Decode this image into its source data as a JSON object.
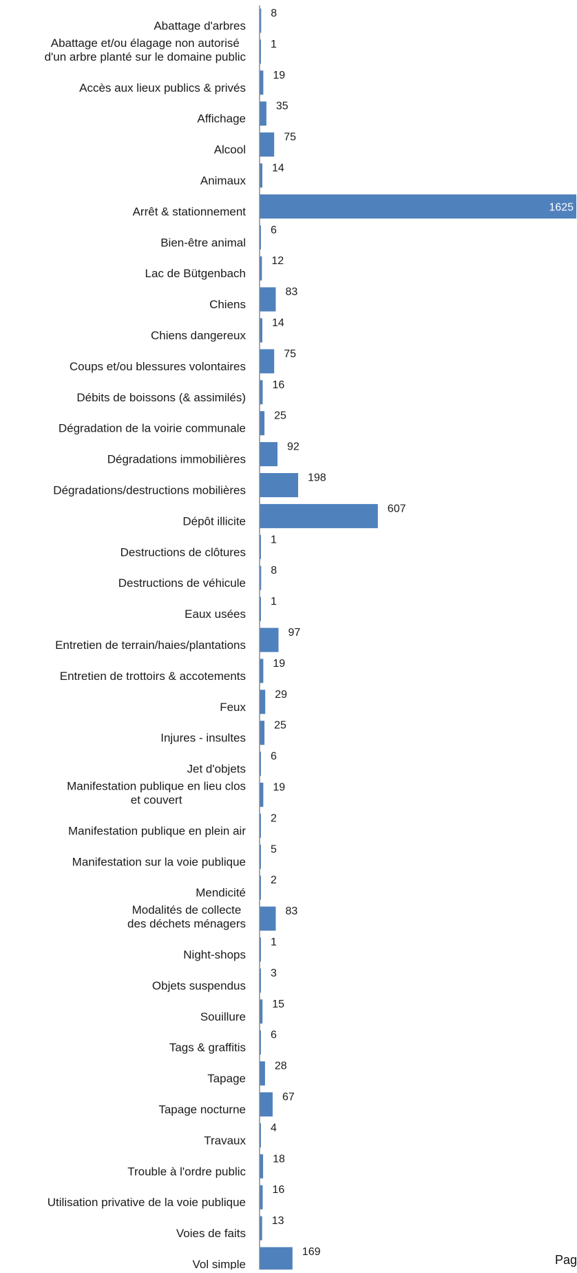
{
  "chart_data": {
    "type": "bar",
    "orientation": "horizontal",
    "title": "",
    "xlabel": "",
    "ylabel": "",
    "categories": [
      "Abattage d'arbres",
      "Abattage et/ou élagage non autorisé d'un arbre planté sur le domaine public",
      "Accès aux lieux publics & privés",
      "Affichage",
      "Alcool",
      "Animaux",
      "Arrêt & stationnement",
      "Bien-être animal",
      "Lac de Bütgenbach",
      "Chiens",
      "Chiens dangereux",
      "Coups et/ou blessures volontaires",
      "Débits de boissons (& assimilés)",
      "Dégradation de la voirie communale",
      "Dégradations immobilières",
      "Dégradations/destructions mobilières",
      "Dépôt illicite",
      "Destructions de clôtures",
      "Destructions de véhicule",
      "Eaux usées",
      "Entretien de terrain/haies/plantations",
      "Entretien de trottoirs & accotements",
      "Feux",
      "Injures - insultes",
      "Jet d'objets",
      "Manifestation publique en lieu clos et couvert",
      "Manifestation publique en plein air",
      "Manifestation sur la voie publique",
      "Mendicité",
      "Modalités de collecte des déchets ménagers",
      "Night-shops",
      "Objets suspendus",
      "Souillure",
      "Tags & graffitis",
      "Tapage",
      "Tapage nocturne",
      "Travaux",
      "Trouble à l'ordre public",
      "Utilisation privative de la voie publique",
      "Voies de faits",
      "Vol simple"
    ],
    "label_lines": [
      [
        "Abattage d'arbres"
      ],
      [
        "Abattage et/ou élagage non autorisé",
        "d'un arbre planté sur le domaine public"
      ],
      [
        "Accès aux lieux publics & privés"
      ],
      [
        "Affichage"
      ],
      [
        "Alcool"
      ],
      [
        "Animaux"
      ],
      [
        "Arrêt & stationnement"
      ],
      [
        "Bien-être animal"
      ],
      [
        "Lac de Bütgenbach"
      ],
      [
        "Chiens"
      ],
      [
        "Chiens dangereux"
      ],
      [
        "Coups et/ou blessures volontaires"
      ],
      [
        "Débits de boissons (& assimilés)"
      ],
      [
        "Dégradation de la voirie communale"
      ],
      [
        "Dégradations immobilières"
      ],
      [
        "Dégradations/destructions mobilières"
      ],
      [
        "Dépôt illicite"
      ],
      [
        "Destructions de clôtures"
      ],
      [
        "Destructions de véhicule"
      ],
      [
        "Eaux usées"
      ],
      [
        "Entretien de terrain/haies/plantations"
      ],
      [
        "Entretien de trottoirs & accotements"
      ],
      [
        "Feux"
      ],
      [
        "Injures - insultes"
      ],
      [
        "Jet d'objets"
      ],
      [
        "Manifestation publique en lieu clos",
        "et couvert"
      ],
      [
        "Manifestation publique en plein air"
      ],
      [
        "Manifestation sur la voie publique"
      ],
      [
        "Mendicité"
      ],
      [
        "Modalités de collecte",
        "des déchets ménagers"
      ],
      [
        "Night-shops"
      ],
      [
        "Objets suspendus"
      ],
      [
        "Souillure"
      ],
      [
        "Tags & graffitis"
      ],
      [
        "Tapage"
      ],
      [
        "Tapage nocturne"
      ],
      [
        "Travaux"
      ],
      [
        "Trouble à l'ordre public"
      ],
      [
        "Utilisation privative de la voie publique"
      ],
      [
        "Voies de faits"
      ],
      [
        "Vol simple"
      ]
    ],
    "values": [
      8,
      1,
      19,
      35,
      75,
      14,
      1625,
      6,
      12,
      83,
      14,
      75,
      16,
      25,
      92,
      198,
      607,
      1,
      8,
      1,
      97,
      19,
      29,
      25,
      6,
      19,
      2,
      5,
      2,
      83,
      1,
      3,
      15,
      6,
      28,
      67,
      4,
      18,
      16,
      13,
      169
    ],
    "xlim": [
      0,
      1625
    ],
    "grid": false,
    "legend": "none",
    "bar_color": "#4f81bd",
    "axis_color": "#8a8a8a",
    "label_color": "#1a1a1a",
    "inside_label_color": "#ffffff"
  },
  "footer": {
    "partial_text": "Pag"
  }
}
